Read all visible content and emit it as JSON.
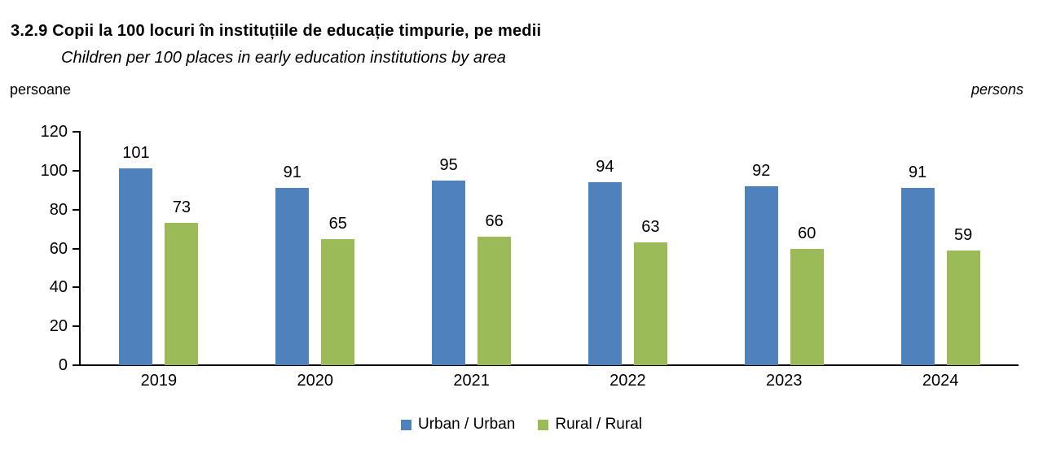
{
  "chart_data": {
    "type": "bar",
    "title": "3.2.9 Copii la 100 locuri în instituțiile de educație timpurie, pe medii",
    "subtitle": "Children per 100 places in early education institutions by area",
    "ylabel_left": "persoane",
    "ylabel_right": "persons",
    "categories": [
      "2019",
      "2020",
      "2021",
      "2022",
      "2023",
      "2024"
    ],
    "series": [
      {
        "name": "Urban / Urban",
        "color": "#4F81BD",
        "values": [
          101,
          91,
          95,
          94,
          92,
          91
        ]
      },
      {
        "name": "Rural / Rural",
        "color": "#9BBB59",
        "values": [
          73,
          65,
          66,
          63,
          60,
          59
        ]
      }
    ],
    "ylim": [
      0,
      120
    ],
    "yticks": [
      0,
      20,
      40,
      60,
      80,
      100,
      120
    ],
    "grid": false,
    "legend_position": "bottom",
    "bar_value_labels": true,
    "axis_color": "#000000",
    "text_color": "#000000"
  }
}
